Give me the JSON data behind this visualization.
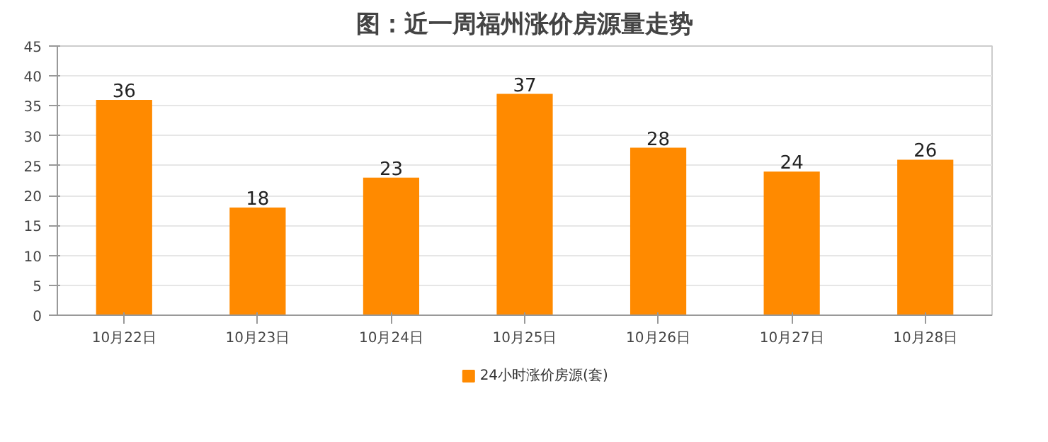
{
  "chart_data": {
    "type": "bar",
    "title": "图：近一周福州涨价房源量走势",
    "categories": [
      "10月22日",
      "10月23日",
      "10月24日",
      "10月25日",
      "10月26日",
      "10月27日",
      "10月28日"
    ],
    "series": [
      {
        "name": "24小时涨价房源(套)",
        "color": "#ff8a00",
        "values": [
          36,
          18,
          23,
          37,
          28,
          24,
          26
        ]
      }
    ],
    "ylim": [
      0,
      45
    ],
    "yticks": [
      0,
      5,
      10,
      15,
      20,
      25,
      30,
      35,
      40,
      45
    ],
    "grid": "y",
    "legend": "bottom",
    "data_labels": true
  }
}
